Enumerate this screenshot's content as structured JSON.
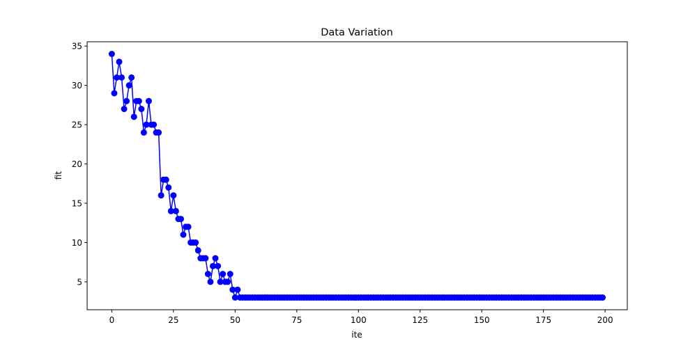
{
  "chart_data": {
    "type": "line",
    "title": "Data Variation",
    "xlabel": "ite",
    "ylabel": "fit",
    "xlim": [
      -10,
      209
    ],
    "ylim": [
      1.45,
      35.55
    ],
    "xticks": [
      0,
      25,
      50,
      75,
      100,
      125,
      150,
      175,
      200
    ],
    "yticks": [
      5,
      10,
      15,
      20,
      25,
      30,
      35
    ],
    "grid": false,
    "legend": "none",
    "series": [
      {
        "color": "#0000ff",
        "marker": "circle",
        "x_start": 0,
        "x_step": 1,
        "values": [
          34,
          29,
          31,
          33,
          31,
          27,
          28,
          30,
          31,
          26,
          28,
          28,
          27,
          24,
          25,
          28,
          25,
          25,
          24,
          24,
          16,
          18,
          18,
          17,
          14,
          16,
          14,
          13,
          13,
          11,
          12,
          12,
          10,
          10,
          10,
          9,
          8,
          8,
          8,
          6,
          5,
          7,
          8,
          7,
          5,
          6,
          5,
          5,
          6,
          4,
          3,
          4,
          3,
          3,
          3,
          3,
          3,
          3,
          3,
          3,
          3,
          3,
          3,
          3,
          3,
          3,
          3,
          3,
          3,
          3,
          3,
          3,
          3,
          3,
          3,
          3,
          3,
          3,
          3,
          3,
          3,
          3,
          3,
          3,
          3,
          3,
          3,
          3,
          3,
          3,
          3,
          3,
          3,
          3,
          3,
          3,
          3,
          3,
          3,
          3,
          3,
          3,
          3,
          3,
          3,
          3,
          3,
          3,
          3,
          3,
          3,
          3,
          3,
          3,
          3,
          3,
          3,
          3,
          3,
          3,
          3,
          3,
          3,
          3,
          3,
          3,
          3,
          3,
          3,
          3,
          3,
          3,
          3,
          3,
          3,
          3,
          3,
          3,
          3,
          3,
          3,
          3,
          3,
          3,
          3,
          3,
          3,
          3,
          3,
          3,
          3,
          3,
          3,
          3,
          3,
          3,
          3,
          3,
          3,
          3,
          3,
          3,
          3,
          3,
          3,
          3,
          3,
          3,
          3,
          3,
          3,
          3,
          3,
          3,
          3,
          3,
          3,
          3,
          3,
          3,
          3,
          3,
          3,
          3,
          3,
          3,
          3,
          3,
          3,
          3,
          3,
          3,
          3,
          3,
          3,
          3,
          3,
          3,
          3,
          3
        ]
      }
    ]
  }
}
